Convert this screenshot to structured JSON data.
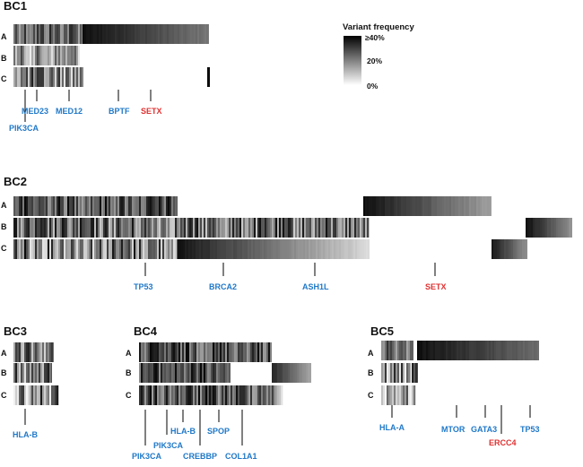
{
  "colors": {
    "known_gene": "#1f78c8",
    "novel_gene": "#e03131"
  },
  "legend": {
    "title": "Variant frequency",
    "ticks": [
      "≥40%",
      "20%",
      "0%"
    ]
  },
  "panels": [
    {
      "id": "bc1",
      "title": "BC1",
      "rows": [
        "A",
        "B",
        "C"
      ],
      "genes": [
        {
          "name": "PIK3CA",
          "color": "known"
        },
        {
          "name": "MED23",
          "color": "known"
        },
        {
          "name": "MED12",
          "color": "known"
        },
        {
          "name": "BPTF",
          "color": "known"
        },
        {
          "name": "SETX",
          "color": "novel"
        }
      ]
    },
    {
      "id": "bc2",
      "title": "BC2",
      "rows": [
        "A",
        "B",
        "C"
      ],
      "genes": [
        {
          "name": "TP53",
          "color": "known"
        },
        {
          "name": "BRCA2",
          "color": "known"
        },
        {
          "name": "ASH1L",
          "color": "known"
        },
        {
          "name": "SETX",
          "color": "novel"
        }
      ]
    },
    {
      "id": "bc3",
      "title": "BC3",
      "rows": [
        "A",
        "B",
        "C"
      ],
      "genes": [
        {
          "name": "HLA-B",
          "color": "known"
        }
      ]
    },
    {
      "id": "bc4",
      "title": "BC4",
      "rows": [
        "A",
        "B",
        "C"
      ],
      "genes": [
        {
          "name": "PIK3CA",
          "color": "known"
        },
        {
          "name": "PIK3CA",
          "color": "known"
        },
        {
          "name": "HLA-B",
          "color": "known"
        },
        {
          "name": "CREBBP",
          "color": "known"
        },
        {
          "name": "SPOP",
          "color": "known"
        },
        {
          "name": "COL1A1",
          "color": "known"
        }
      ]
    },
    {
      "id": "bc5",
      "title": "BC5",
      "rows": [
        "A",
        "B",
        "C"
      ],
      "genes": [
        {
          "name": "HLA-A",
          "color": "known"
        },
        {
          "name": "MTOR",
          "color": "known"
        },
        {
          "name": "GATA3",
          "color": "known"
        },
        {
          "name": "ERCC4",
          "color": "novel"
        },
        {
          "name": "TP53",
          "color": "known"
        }
      ]
    }
  ]
}
